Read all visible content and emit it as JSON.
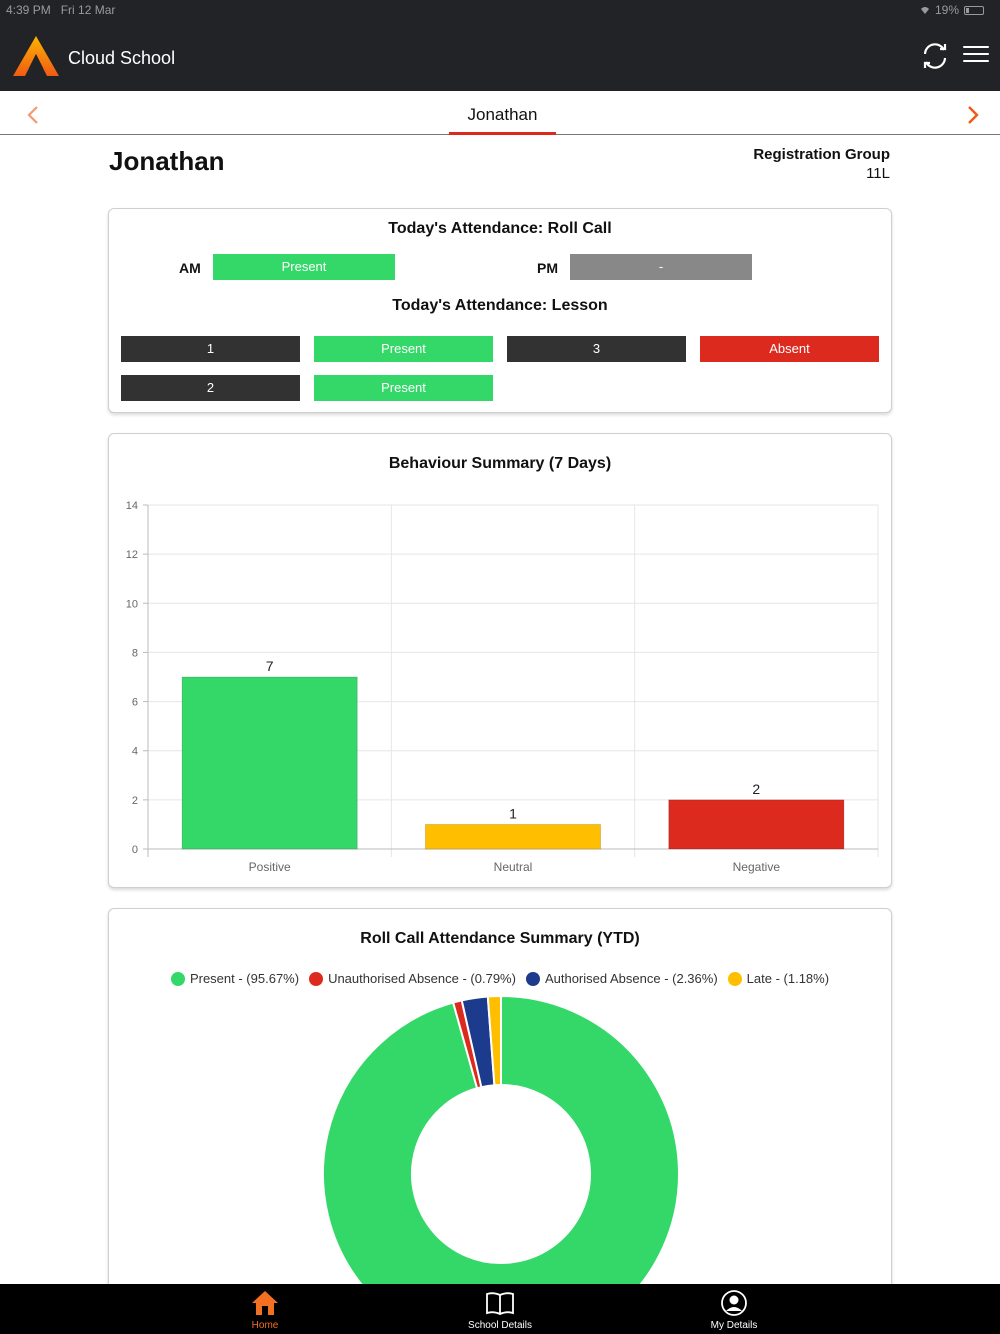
{
  "status_bar": {
    "time": "4:39 PM",
    "date": "Fri 12 Mar",
    "battery": "19%"
  },
  "header": {
    "title": "Cloud School",
    "refresh_icon": "refresh-icon",
    "menu_icon": "hamburger-menu-icon"
  },
  "tabs": {
    "current": "Jonathan"
  },
  "student": {
    "name": "Jonathan",
    "reg_group_label": "Registration Group",
    "reg_group_value": "11L"
  },
  "roll_call": {
    "title": "Today's Attendance: Roll Call",
    "am_label": "AM",
    "am_status": "Present",
    "pm_label": "PM",
    "pm_status": "-"
  },
  "lessons": {
    "title": "Today's Attendance: Lesson",
    "items": [
      {
        "period": "1",
        "status": "Present"
      },
      {
        "period": "3",
        "status": "Absent"
      },
      {
        "period": "2",
        "status": "Present"
      }
    ]
  },
  "colors": {
    "present": "#34d868",
    "absent": "#dc2a1f",
    "neutral": "#ffbf00",
    "authorised": "#1d3b8c",
    "accent": "#f36f21"
  },
  "behaviour": {
    "title": "Behaviour Summary (7 Days)"
  },
  "attendance_summary": {
    "title": "Roll Call Attendance Summary (YTD)"
  },
  "chart_data": [
    {
      "type": "bar",
      "title": "Behaviour Summary (7 Days)",
      "categories": [
        "Positive",
        "Neutral",
        "Negative"
      ],
      "values": [
        7,
        1,
        2
      ],
      "colors": [
        "#34d868",
        "#ffbf00",
        "#dc2a1f"
      ],
      "ylim": [
        0,
        14
      ],
      "yticks": [
        0,
        2,
        4,
        6,
        8,
        10,
        12,
        14
      ],
      "grid": true
    },
    {
      "type": "pie",
      "title": "Roll Call Attendance Summary (YTD)",
      "legend_position": "top",
      "slices": [
        {
          "label": "Present - (95.67%)",
          "value": 95.67,
          "color": "#34d868"
        },
        {
          "label": "Unauthorised Absence - (0.79%)",
          "value": 0.79,
          "color": "#dc2a1f"
        },
        {
          "label": "Authorised Absence - (2.36%)",
          "value": 2.36,
          "color": "#1d3b8c"
        },
        {
          "label": "Late - (1.18%)",
          "value": 1.18,
          "color": "#ffbf00"
        }
      ]
    }
  ],
  "bottom_nav": [
    {
      "label": "Home",
      "icon": "home-icon",
      "active": true
    },
    {
      "label": "School Details",
      "icon": "book-icon",
      "active": false
    },
    {
      "label": "My Details",
      "icon": "user-circle-icon",
      "active": false
    }
  ]
}
